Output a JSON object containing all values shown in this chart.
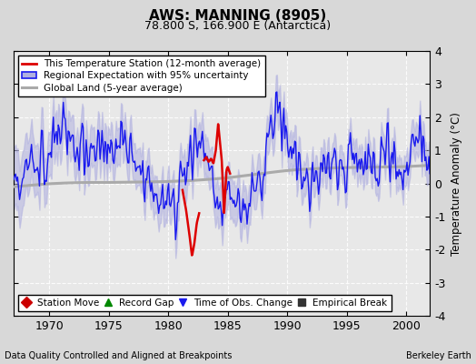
{
  "title": "AWS: MANNING (8905)",
  "subtitle": "78.800 S, 166.900 E (Antarctica)",
  "ylabel": "Temperature Anomaly (°C)",
  "xlabel_left": "Data Quality Controlled and Aligned at Breakpoints",
  "xlabel_right": "Berkeley Earth",
  "ylim": [
    -4,
    4
  ],
  "xlim": [
    1967.0,
    2002.0
  ],
  "yticks": [
    -4,
    -3,
    -2,
    -1,
    0,
    1,
    2,
    3,
    4
  ],
  "xticks": [
    1970,
    1975,
    1980,
    1985,
    1990,
    1995,
    2000
  ],
  "bg_color": "#d8d8d8",
  "plot_bg_color": "#e8e8e8",
  "grid_color": "#ffffff",
  "blue_line_color": "#1a1aee",
  "red_line_color": "#dd0000",
  "gray_line_color": "#aaaaaa",
  "fill_color": "#b0b0e0",
  "legend_labels": [
    "This Temperature Station (12-month average)",
    "Regional Expectation with 95% uncertainty",
    "Global Land (5-year average)"
  ],
  "bottom_legend": [
    {
      "marker": "D",
      "color": "#cc0000",
      "label": "Station Move"
    },
    {
      "marker": "^",
      "color": "#008800",
      "label": "Record Gap"
    },
    {
      "marker": "v",
      "color": "#1a1aee",
      "label": "Time of Obs. Change"
    },
    {
      "marker": "s",
      "color": "#333333",
      "label": "Empirical Break"
    }
  ],
  "regional_ctrl_t": [
    1967,
    1968,
    1969,
    1970,
    1970.5,
    1971,
    1971.5,
    1972,
    1972.5,
    1973,
    1973.5,
    1974,
    1974.5,
    1975,
    1975.5,
    1976,
    1976.5,
    1977,
    1977.5,
    1978,
    1978.5,
    1979,
    1979.5,
    1980,
    1980.5,
    1981,
    1981.5,
    1982,
    1982.5,
    1983,
    1983.5,
    1984,
    1984.3,
    1984.5,
    1984.8,
    1985,
    1985.5,
    1986,
    1986.5,
    1987,
    1987.5,
    1988,
    1988.5,
    1989,
    1989.3,
    1989.5,
    1990,
    1990.5,
    1991,
    1991.5,
    1992,
    1992.5,
    1993,
    1993.5,
    1994,
    1994.5,
    1995,
    1995.5,
    1996,
    1996.5,
    1997,
    1997.5,
    1998,
    1998.5,
    1999,
    1999.5,
    2000,
    2000.5,
    2001,
    2001.5,
    2002
  ],
  "regional_ctrl_v": [
    0.2,
    0.4,
    0.7,
    1.0,
    1.4,
    1.5,
    1.3,
    1.2,
    1.1,
    1.0,
    0.95,
    0.9,
    1.1,
    1.3,
    1.1,
    0.9,
    0.8,
    0.7,
    0.6,
    0.3,
    0.1,
    -0.1,
    -0.5,
    -0.7,
    -0.4,
    0.0,
    0.6,
    1.2,
    1.3,
    1.0,
    0.5,
    -0.4,
    -0.8,
    -0.9,
    -0.6,
    -0.3,
    -0.5,
    -0.8,
    -0.6,
    -0.4,
    -0.2,
    0.5,
    1.5,
    2.2,
    2.0,
    1.8,
    1.5,
    0.8,
    0.5,
    -0.1,
    0.0,
    0.3,
    0.5,
    0.8,
    0.6,
    0.4,
    0.7,
    1.0,
    0.7,
    0.4,
    0.5,
    0.6,
    0.8,
    0.9,
    0.8,
    0.5,
    0.7,
    1.0,
    1.2,
    1.1,
    1.0
  ],
  "red_seg1_t": [
    1981.2,
    1981.5,
    1981.8,
    1982.0,
    1982.2,
    1982.4,
    1982.6
  ],
  "red_seg1_v": [
    -0.2,
    -0.8,
    -1.6,
    -2.2,
    -1.8,
    -1.2,
    -0.9
  ],
  "red_seg2_t": [
    1983.0,
    1983.2,
    1983.4,
    1983.6,
    1983.8,
    1984.0,
    1984.2,
    1984.5,
    1984.7,
    1984.9,
    1985.0,
    1985.2
  ],
  "red_seg2_v": [
    0.7,
    0.8,
    0.65,
    0.75,
    0.6,
    1.0,
    1.8,
    0.7,
    -0.9,
    0.4,
    0.5,
    0.3
  ],
  "gray_ctrl_t": [
    1967,
    1970,
    1975,
    1980,
    1985,
    1990,
    1995,
    2000,
    2002
  ],
  "gray_ctrl_v": [
    -0.1,
    -0.05,
    0.0,
    0.1,
    0.2,
    0.35,
    0.45,
    0.55,
    0.6
  ]
}
